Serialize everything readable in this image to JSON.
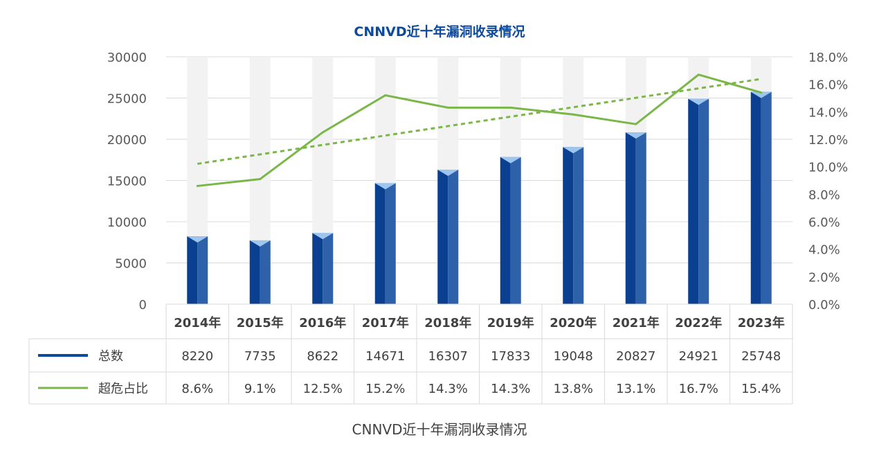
{
  "chart_data": {
    "type": "bar",
    "title": "CNNVD近十年漏洞收录情况",
    "caption": "CNNVD近十年漏洞收录情况",
    "categories": [
      "2014年",
      "2015年",
      "2016年",
      "2017年",
      "2018年",
      "2019年",
      "2020年",
      "2021年",
      "2022年",
      "2023年"
    ],
    "left_axis": {
      "ylim": [
        0,
        30000
      ],
      "ticks": [
        "0",
        "5000",
        "10000",
        "15000",
        "20000",
        "25000",
        "30000"
      ]
    },
    "right_axis": {
      "ylim": [
        0,
        18
      ],
      "ticks": [
        "0.0%",
        "2.0%",
        "4.0%",
        "6.0%",
        "8.0%",
        "10.0%",
        "12.0%",
        "14.0%",
        "16.0%",
        "18.0%"
      ]
    },
    "series": [
      {
        "name": "总数",
        "kind": "bar",
        "axis": "left",
        "color": "#0d4a9c",
        "values": [
          8220,
          7735,
          8622,
          14671,
          16307,
          17833,
          19048,
          20827,
          24921,
          25748
        ],
        "labels": [
          "8220",
          "7735",
          "8622",
          "14671",
          "16307",
          "17833",
          "19048",
          "20827",
          "24921",
          "25748"
        ]
      },
      {
        "name": "超危占比",
        "kind": "line",
        "axis": "right",
        "color": "#7ab648",
        "values": [
          8.6,
          9.1,
          12.5,
          15.2,
          14.3,
          14.3,
          13.8,
          13.1,
          16.7,
          15.4
        ],
        "labels": [
          "8.6%",
          "9.1%",
          "12.5%",
          "15.2%",
          "14.3%",
          "14.3%",
          "13.8%",
          "13.1%",
          "16.7%",
          "15.4%"
        ],
        "trendline": true
      }
    ],
    "grid": true,
    "legend": "data-table-bottom"
  }
}
